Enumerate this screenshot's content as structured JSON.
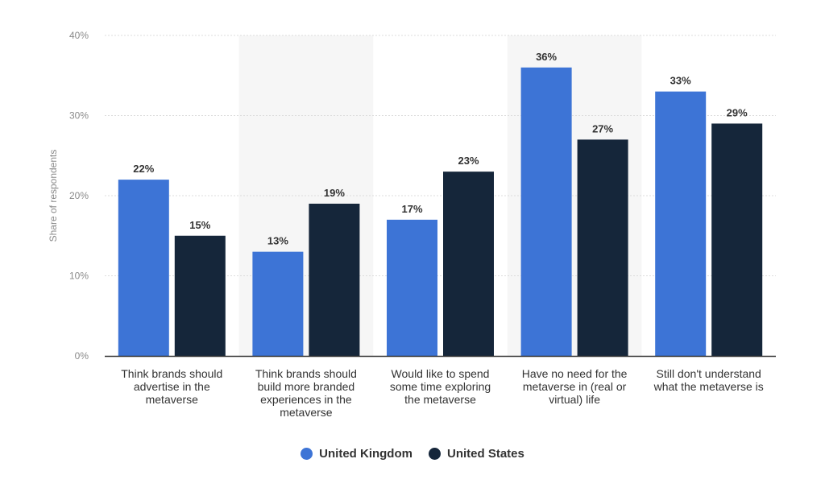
{
  "chart_data": {
    "type": "bar",
    "categories": [
      [
        "Think brands should",
        "advertise in the",
        "metaverse"
      ],
      [
        "Think brands should",
        "build more branded",
        "experiences in the",
        "metaverse"
      ],
      [
        "Would like to spend",
        "some time exploring",
        "the metaverse"
      ],
      [
        "Have no need for the",
        "metaverse in (real or",
        "virtual) life"
      ],
      [
        "Still don't understand",
        "what the metaverse is"
      ]
    ],
    "series": [
      {
        "name": "United Kingdom",
        "color": "#3d74d6",
        "values": [
          22,
          13,
          17,
          36,
          33
        ],
        "labels": [
          "22%",
          "13%",
          "17%",
          "36%",
          "33%"
        ]
      },
      {
        "name": "United States",
        "color": "#15263a",
        "values": [
          15,
          19,
          23,
          27,
          29
        ],
        "labels": [
          "15%",
          "19%",
          "23%",
          "27%",
          "29%"
        ]
      }
    ],
    "ylabel": "Share of respondents",
    "ylim": [
      0,
      40
    ],
    "yticks": [
      0,
      10,
      20,
      30,
      40
    ],
    "ytick_labels": [
      "0%",
      "10%",
      "20%",
      "30%",
      "40%"
    ],
    "grid": true,
    "legend": "bottom-center"
  }
}
